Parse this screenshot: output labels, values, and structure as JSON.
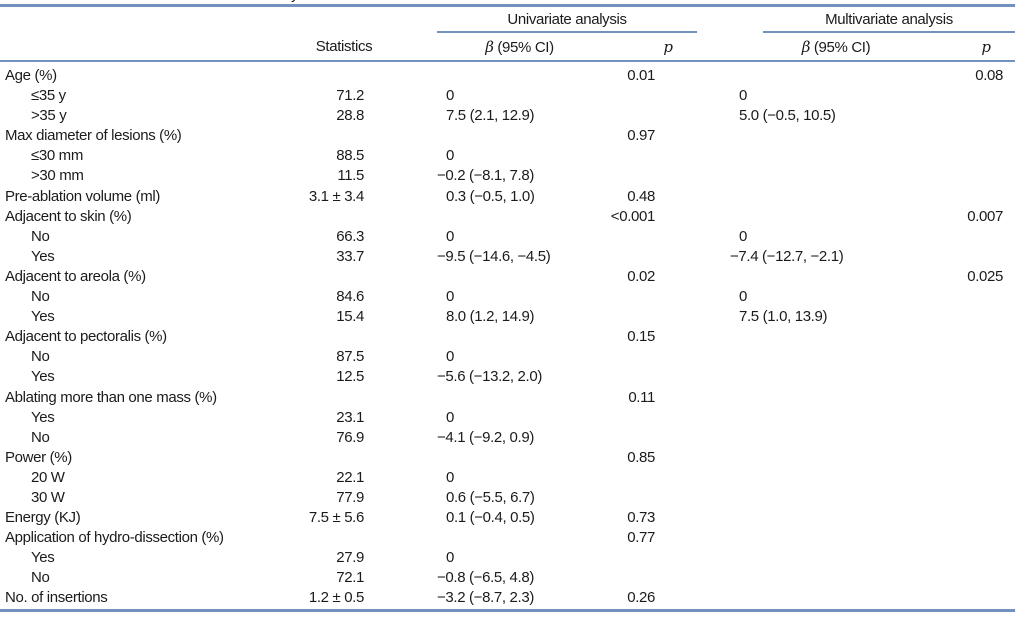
{
  "caption_fragment": "y",
  "colors": {
    "rule": "#7291bf",
    "text": "#1b1b1b",
    "background": "#ffffff"
  },
  "table": {
    "col_groups": [
      {
        "label": "Univariate analysis"
      },
      {
        "label": "Multivariate analysis"
      }
    ],
    "headers": {
      "statistics": "Statistics",
      "uni_beta": "β (95% CI)",
      "uni_p": "p",
      "multi_beta": "β (95% CI)",
      "multi_p": "p"
    },
    "rows": [
      {
        "label": "Age (%)",
        "indent": 0,
        "statistics": "",
        "uni_beta": "",
        "uni_p": "0.01",
        "multi_beta": "",
        "multi_p": "0.08"
      },
      {
        "label": "≤35 y",
        "indent": 1,
        "statistics": "71.2",
        "uni_beta": "0",
        "uni_p": "",
        "multi_beta": "0",
        "multi_p": ""
      },
      {
        "label": ">35 y",
        "indent": 1,
        "statistics": "28.8",
        "uni_beta": "7.5 (2.1, 12.9)",
        "uni_p": "",
        "multi_beta": "5.0 (−0.5, 10.5)",
        "multi_p": ""
      },
      {
        "label": "Max diameter of lesions (%)",
        "indent": 0,
        "statistics": "",
        "uni_beta": "",
        "uni_p": "0.97",
        "multi_beta": "",
        "multi_p": ""
      },
      {
        "label": "≤30 mm",
        "indent": 1,
        "statistics": "88.5",
        "uni_beta": "0",
        "uni_p": "",
        "multi_beta": "",
        "multi_p": ""
      },
      {
        "label": ">30 mm",
        "indent": 1,
        "statistics": "11.5",
        "uni_beta": "−0.2 (−8.1, 7.8)",
        "uni_p": "",
        "multi_beta": "",
        "multi_p": ""
      },
      {
        "label": "Pre-ablation volume (ml)",
        "indent": 0,
        "statistics": "3.1 ± 3.4",
        "uni_beta": "0.3 (−0.5, 1.0)",
        "uni_p": "0.48",
        "multi_beta": "",
        "multi_p": ""
      },
      {
        "label": "Adjacent to skin (%)",
        "indent": 0,
        "statistics": "",
        "uni_beta": "",
        "uni_p": "<0.001",
        "multi_beta": "",
        "multi_p": "0.007"
      },
      {
        "label": "No",
        "indent": 1,
        "statistics": "66.3",
        "uni_beta": "0",
        "uni_p": "",
        "multi_beta": "0",
        "multi_p": ""
      },
      {
        "label": "Yes",
        "indent": 1,
        "statistics": "33.7",
        "uni_beta": "−9.5 (−14.6, −4.5)",
        "uni_p": "",
        "multi_beta": "−7.4 (−12.7, −2.1)",
        "multi_p": ""
      },
      {
        "label": "Adjacent to areola (%)",
        "indent": 0,
        "statistics": "",
        "uni_beta": "",
        "uni_p": "0.02",
        "multi_beta": "",
        "multi_p": "0.025"
      },
      {
        "label": "No",
        "indent": 1,
        "statistics": "84.6",
        "uni_beta": "0",
        "uni_p": "",
        "multi_beta": "0",
        "multi_p": ""
      },
      {
        "label": "Yes",
        "indent": 1,
        "statistics": "15.4",
        "uni_beta": "8.0 (1.2, 14.9)",
        "uni_p": "",
        "multi_beta": "7.5 (1.0, 13.9)",
        "multi_p": ""
      },
      {
        "label": "Adjacent to pectoralis (%)",
        "indent": 0,
        "statistics": "",
        "uni_beta": "",
        "uni_p": "0.15",
        "multi_beta": "",
        "multi_p": ""
      },
      {
        "label": "No",
        "indent": 1,
        "statistics": "87.5",
        "uni_beta": "0",
        "uni_p": "",
        "multi_beta": "",
        "multi_p": ""
      },
      {
        "label": "Yes",
        "indent": 1,
        "statistics": "12.5",
        "uni_beta": "−5.6 (−13.2, 2.0)",
        "uni_p": "",
        "multi_beta": "",
        "multi_p": ""
      },
      {
        "label": "Ablating more than one mass (%)",
        "indent": 0,
        "statistics": "",
        "uni_beta": "",
        "uni_p": "0.11",
        "multi_beta": "",
        "multi_p": ""
      },
      {
        "label": "Yes",
        "indent": 1,
        "statistics": "23.1",
        "uni_beta": "0",
        "uni_p": "",
        "multi_beta": "",
        "multi_p": ""
      },
      {
        "label": "No",
        "indent": 1,
        "statistics": "76.9",
        "uni_beta": "−4.1 (−9.2, 0.9)",
        "uni_p": "",
        "multi_beta": "",
        "multi_p": ""
      },
      {
        "label": "Power (%)",
        "indent": 0,
        "statistics": "",
        "uni_beta": "",
        "uni_p": "0.85",
        "multi_beta": "",
        "multi_p": ""
      },
      {
        "label": "20 W",
        "indent": 1,
        "statistics": "22.1",
        "uni_beta": "0",
        "uni_p": "",
        "multi_beta": "",
        "multi_p": ""
      },
      {
        "label": "30 W",
        "indent": 1,
        "statistics": "77.9",
        "uni_beta": "0.6 (−5.5, 6.7)",
        "uni_p": "",
        "multi_beta": "",
        "multi_p": ""
      },
      {
        "label": "Energy (KJ)",
        "indent": 0,
        "statistics": "7.5 ± 5.6",
        "uni_beta": "0.1 (−0.4, 0.5)",
        "uni_p": "0.73",
        "multi_beta": "",
        "multi_p": ""
      },
      {
        "label": "Application of hydro-dissection (%)",
        "indent": 0,
        "statistics": "",
        "uni_beta": "",
        "uni_p": "0.77",
        "multi_beta": "",
        "multi_p": ""
      },
      {
        "label": "Yes",
        "indent": 1,
        "statistics": "27.9",
        "uni_beta": "0",
        "uni_p": "",
        "multi_beta": "",
        "multi_p": ""
      },
      {
        "label": "No",
        "indent": 1,
        "statistics": "72.1",
        "uni_beta": "−0.8 (−6.5, 4.8)",
        "uni_p": "",
        "multi_beta": "",
        "multi_p": ""
      },
      {
        "label": "No. of insertions",
        "indent": 0,
        "statistics": "1.2 ± 0.5",
        "uni_beta": "−3.2 (−8.7, 2.3)",
        "uni_p": "0.26",
        "multi_beta": "",
        "multi_p": ""
      }
    ]
  }
}
